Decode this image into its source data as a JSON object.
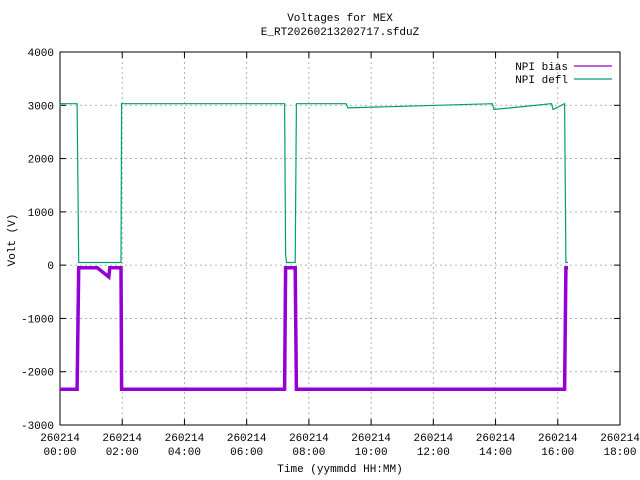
{
  "chart_data": {
    "type": "line",
    "title": "Voltages for MEX",
    "subtitle": "E_RT20260213202717.sfduZ",
    "xlabel": "Time (yymmdd HH:MM)",
    "ylabel": "Volt (V)",
    "x": [
      0,
      0.02,
      0.55,
      0.6,
      1.2,
      1.57,
      1.6,
      1.96,
      1.98,
      3,
      5,
      7.22,
      7.25,
      7.28,
      7.56,
      7.6,
      9.2,
      9.25,
      13.9,
      13.95,
      15.8,
      15.85,
      16.22,
      16.26,
      16.33
    ],
    "series": [
      {
        "name": "NPI bias",
        "color": "#9400d3",
        "values": [
          -2330,
          -2330,
          -2330,
          -50,
          -50,
          -220,
          -50,
          -50,
          -2330,
          -2330,
          -2330,
          -2330,
          -50,
          -50,
          -50,
          -2330,
          -2330,
          -2330,
          -2330,
          -2330,
          -2330,
          -2330,
          -2330,
          -50,
          -50
        ]
      },
      {
        "name": "NPI defl",
        "color": "#009e73",
        "values": [
          2990,
          3030,
          3030,
          50,
          50,
          50,
          50,
          50,
          3030,
          3030,
          3030,
          3030,
          200,
          50,
          50,
          3030,
          3030,
          2950,
          3030,
          2920,
          3030,
          2920,
          3030,
          50,
          50
        ]
      }
    ],
    "xlim": [
      0,
      18
    ],
    "xticks": [
      {
        "value": 0,
        "label": "260214\n00:00"
      },
      {
        "value": 2,
        "label": "260214\n02:00"
      },
      {
        "value": 4,
        "label": "260214\n04:00"
      },
      {
        "value": 6,
        "label": "260214\n06:00"
      },
      {
        "value": 8,
        "label": "260214\n08:00"
      },
      {
        "value": 10,
        "label": "260214\n10:00"
      },
      {
        "value": 12,
        "label": "260214\n12:00"
      },
      {
        "value": 14,
        "label": "260214\n14:00"
      },
      {
        "value": 16,
        "label": "260214\n16:00"
      },
      {
        "value": 18,
        "label": "260214\n18:00"
      }
    ],
    "ylim": [
      -3000,
      4000
    ],
    "yticks": [
      -3000,
      -2000,
      -1000,
      0,
      1000,
      2000,
      3000,
      4000
    ],
    "grid": true,
    "legend": "top-right"
  }
}
